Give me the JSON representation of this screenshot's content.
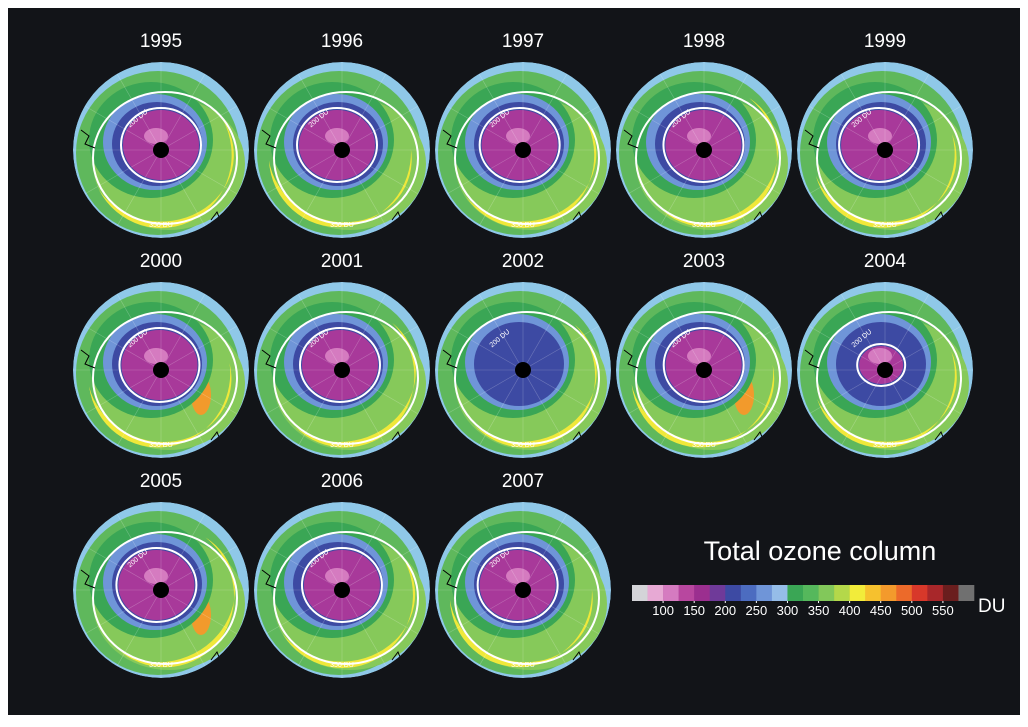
{
  "title": "Total ozone column",
  "maps": [
    {
      "year": "1995"
    },
    {
      "year": "1996"
    },
    {
      "year": "1997"
    },
    {
      "year": "1998"
    },
    {
      "year": "1999"
    },
    {
      "year": "2000"
    },
    {
      "year": "2001"
    },
    {
      "year": "2002"
    },
    {
      "year": "2003"
    },
    {
      "year": "2004"
    },
    {
      "year": "2005"
    },
    {
      "year": "2006"
    },
    {
      "year": "2007"
    }
  ],
  "contour_labels": [
    "200 DU",
    "350 DU"
  ],
  "colorbar": {
    "lim": [
      50,
      600
    ],
    "ticks": [
      100,
      150,
      200,
      250,
      300,
      350,
      400,
      450,
      500,
      550
    ],
    "unit": "DU",
    "colors": [
      "#d4d4d8",
      "#e7a9d4",
      "#d57bc0",
      "#b8479f",
      "#9b2f8f",
      "#6f3a99",
      "#3d4aa3",
      "#4c6cc0",
      "#6f95d8",
      "#95bde8",
      "#3aa655",
      "#55b85c",
      "#82c85a",
      "#b4d84a",
      "#f2ec3a",
      "#f6c12e",
      "#f39a2c",
      "#ec6a2a",
      "#d8382a",
      "#a8272a",
      "#6a1e1e",
      "#707070"
    ]
  }
}
